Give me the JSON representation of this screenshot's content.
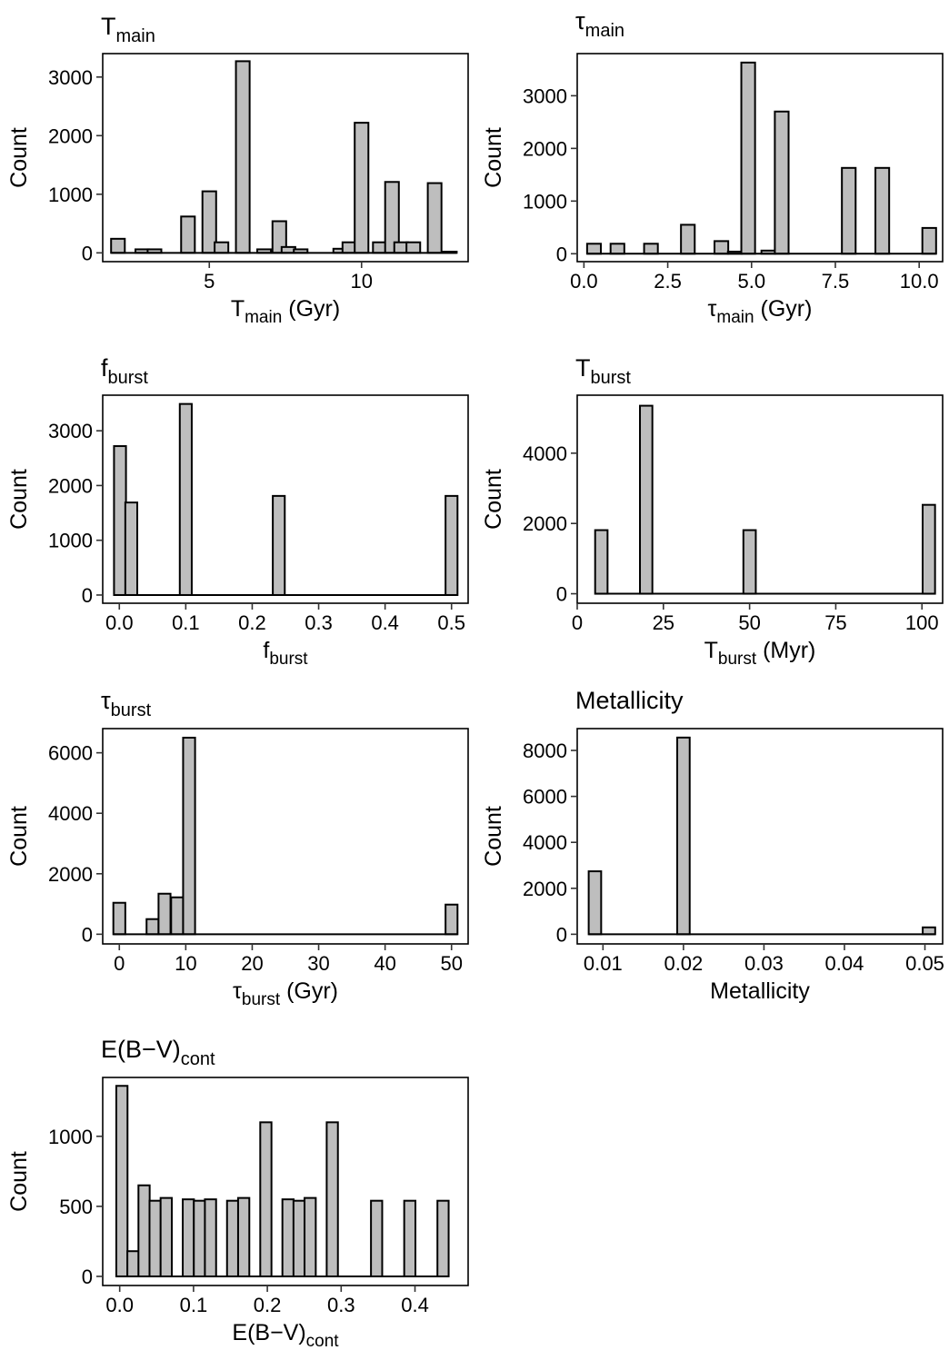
{
  "chart_data": [
    {
      "type": "bar",
      "title": {
        "main": "T",
        "sub": "main"
      },
      "xlabel": {
        "main": "T",
        "sub": "main",
        "after": " (Gyr)"
      },
      "ylabel": "Count",
      "xlim": [
        1.5,
        13.5
      ],
      "ylim": [
        -150,
        3400
      ],
      "xticks": [
        5,
        10
      ],
      "xtick_labels": [
        "5",
        "10"
      ],
      "yticks": [
        0,
        1000,
        2000,
        3000
      ],
      "ytick_labels": [
        "0",
        "1000",
        "2000",
        "3000"
      ],
      "bin_width": 0.45,
      "x": [
        2.0,
        2.8,
        3.2,
        4.3,
        5.0,
        5.4,
        6.1,
        6.8,
        7.3,
        7.6,
        8.0,
        9.3,
        9.6,
        10.0,
        10.6,
        11.0,
        11.3,
        11.7,
        12.4,
        12.9
      ],
      "values": [
        240,
        60,
        60,
        620,
        1050,
        180,
        3270,
        60,
        540,
        100,
        60,
        70,
        180,
        2220,
        180,
        1210,
        180,
        180,
        1190,
        20
      ]
    },
    {
      "type": "bar",
      "title": {
        "main": "τ",
        "sub": "main"
      },
      "xlabel": {
        "main": "τ",
        "sub": "main",
        "after": " (Gyr)"
      },
      "ylabel": "Count",
      "xlim": [
        -0.2,
        10.7
      ],
      "ylim": [
        -150,
        3800
      ],
      "xticks": [
        0,
        2.5,
        5,
        7.5,
        10
      ],
      "xtick_labels": [
        "0.0",
        "2.5",
        "5.0",
        "7.5",
        "10.0"
      ],
      "yticks": [
        0,
        1000,
        2000,
        3000
      ],
      "ytick_labels": [
        "0",
        "1000",
        "2000",
        "3000"
      ],
      "bin_width": 0.41,
      "x": [
        0.3,
        1.0,
        2.0,
        3.1,
        4.1,
        4.5,
        4.9,
        5.5,
        5.9,
        7.9,
        8.9,
        10.3
      ],
      "values": [
        190,
        190,
        190,
        550,
        240,
        40,
        3630,
        60,
        2700,
        1630,
        1630,
        490
      ]
    },
    {
      "type": "bar",
      "title": {
        "main": "f",
        "sub": "burst"
      },
      "xlabel": {
        "main": "f",
        "sub": "burst",
        "after": ""
      },
      "ylabel": "Count",
      "xlim": [
        -0.025,
        0.525
      ],
      "ylim": [
        -150,
        3650
      ],
      "xticks": [
        0,
        0.1,
        0.2,
        0.3,
        0.4,
        0.5
      ],
      "xtick_labels": [
        "0.0",
        "0.1",
        "0.2",
        "0.3",
        "0.4",
        "0.5"
      ],
      "yticks": [
        0,
        1000,
        2000,
        3000
      ],
      "ytick_labels": [
        "0",
        "1000",
        "2000",
        "3000"
      ],
      "bin_width": 0.018,
      "x": [
        0.001,
        0.018,
        0.1,
        0.24,
        0.5
      ],
      "values": [
        2720,
        1690,
        3490,
        1810,
        1810
      ]
    },
    {
      "type": "bar",
      "title": {
        "main": "T",
        "sub": "burst"
      },
      "xlabel": {
        "main": "T",
        "sub": "burst",
        "after": " (Myr)"
      },
      "ylabel": "Count",
      "xlim": [
        0,
        106
      ],
      "ylim": [
        -270,
        5650
      ],
      "xticks": [
        0,
        25,
        50,
        75,
        100
      ],
      "xtick_labels": [
        "0",
        "25",
        "50",
        "75",
        "100"
      ],
      "yticks": [
        0,
        2000,
        4000
      ],
      "ytick_labels": [
        "0",
        "2000",
        "4000"
      ],
      "bin_width": 3.6,
      "x": [
        7,
        20,
        50,
        102
      ],
      "values": [
        1810,
        5350,
        1810,
        2530
      ]
    },
    {
      "type": "bar",
      "title": {
        "main": "τ",
        "sub": "burst"
      },
      "xlabel": {
        "main": "τ",
        "sub": "burst",
        "after": " (Gyr)"
      },
      "ylabel": "Count",
      "xlim": [
        -2.5,
        52.5
      ],
      "ylim": [
        -320,
        6800
      ],
      "xticks": [
        0,
        10,
        20,
        30,
        40,
        50
      ],
      "xtick_labels": [
        "0",
        "10",
        "20",
        "30",
        "40",
        "50"
      ],
      "yticks": [
        0,
        2000,
        4000,
        6000
      ],
      "ytick_labels": [
        "0",
        "2000",
        "4000",
        "6000"
      ],
      "bin_width": 1.8,
      "x": [
        0,
        5,
        6.8,
        8.7,
        10.5,
        50
      ],
      "values": [
        1040,
        500,
        1340,
        1220,
        6500,
        980
      ]
    },
    {
      "type": "bar",
      "title": {
        "main": "Metallicity",
        "sub": ""
      },
      "xlabel": {
        "main": "Metallicity",
        "sub": "",
        "after": ""
      },
      "ylabel": "Count",
      "xlim": [
        0.0068,
        0.0522
      ],
      "ylim": [
        -420,
        8950
      ],
      "xticks": [
        0.01,
        0.02,
        0.03,
        0.04,
        0.05
      ],
      "xtick_labels": [
        "0.01",
        "0.02",
        "0.03",
        "0.04",
        "0.05"
      ],
      "yticks": [
        0,
        2000,
        4000,
        6000,
        8000
      ],
      "ytick_labels": [
        "0",
        "2000",
        "4000",
        "6000",
        "8000"
      ],
      "bin_width": 0.00155,
      "x": [
        0.009,
        0.02,
        0.0505
      ],
      "values": [
        2740,
        8560,
        300
      ]
    },
    {
      "type": "bar",
      "title": {
        "main": "E(B−V)",
        "sub": "cont"
      },
      "xlabel": {
        "main": "E(B−V)",
        "sub": "cont",
        "after": ""
      },
      "ylabel": "Count",
      "xlim": [
        -0.023,
        0.472
      ],
      "ylim": [
        -65,
        1420
      ],
      "xticks": [
        0,
        0.1,
        0.2,
        0.3,
        0.4
      ],
      "xtick_labels": [
        "0.0",
        "0.1",
        "0.2",
        "0.3",
        "0.4"
      ],
      "yticks": [
        0,
        500,
        1000
      ],
      "ytick_labels": [
        "0",
        "500",
        "1000"
      ],
      "bin_width": 0.0152,
      "x": [
        0.003,
        0.018,
        0.033,
        0.048,
        0.063,
        0.093,
        0.108,
        0.123,
        0.153,
        0.168,
        0.198,
        0.228,
        0.243,
        0.258,
        0.288,
        0.348,
        0.393,
        0.438
      ],
      "values": [
        1360,
        180,
        650,
        540,
        560,
        550,
        540,
        550,
        540,
        560,
        1100,
        550,
        540,
        560,
        1100,
        540,
        540,
        540
      ]
    }
  ]
}
